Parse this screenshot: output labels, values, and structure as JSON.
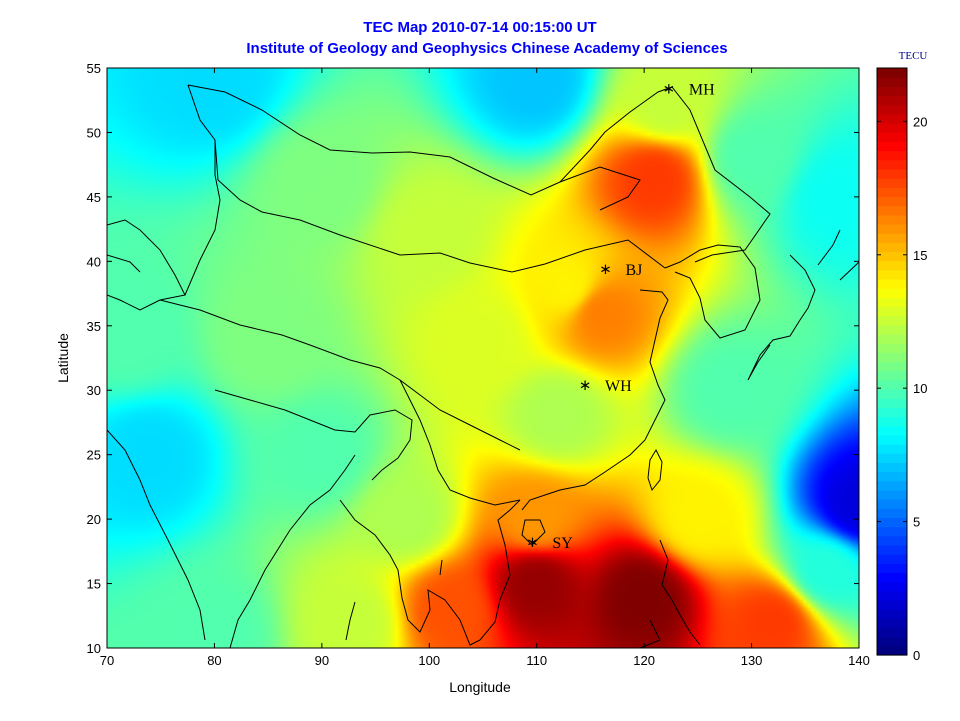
{
  "chart_data": {
    "type": "heatmap",
    "title": "TEC Map 2010-07-14 00:15:00 UT",
    "subtitle": "Institute of Geology and Geophysics Chinese Academy of Sciences",
    "xlabel": "Longitude",
    "ylabel": "Latitude",
    "xlim": [
      70,
      140
    ],
    "ylim": [
      10,
      55
    ],
    "xticks": [
      "70",
      "80",
      "90",
      "100",
      "110",
      "120",
      "130",
      "140"
    ],
    "xtick_values": [
      70,
      80,
      90,
      100,
      110,
      120,
      130,
      140
    ],
    "yticks": [
      "10",
      "15",
      "20",
      "25",
      "30",
      "35",
      "40",
      "45",
      "50",
      "55"
    ],
    "ytick_values": [
      10,
      15,
      20,
      25,
      30,
      35,
      40,
      45,
      50,
      55
    ],
    "colorbar": {
      "label": "TECU",
      "range": [
        0,
        22
      ],
      "ticks": [
        "0",
        "5",
        "10",
        "15",
        "20"
      ],
      "tick_values": [
        0,
        5,
        10,
        15,
        20
      ],
      "colormap": "jet"
    },
    "stations": [
      {
        "name": "MH",
        "lon": 122.3,
        "lat": 53.5
      },
      {
        "name": "BJ",
        "lon": 116.4,
        "lat": 39.5
      },
      {
        "name": "WH",
        "lon": 114.5,
        "lat": 30.5
      },
      {
        "name": "SY",
        "lon": 109.6,
        "lat": 18.3
      }
    ],
    "tec_anchor_points": [
      {
        "lon": 80,
        "lat": 54,
        "tec": 7.5
      },
      {
        "lon": 110,
        "lat": 54,
        "tec": 7.0
      },
      {
        "lon": 122,
        "lat": 52,
        "tec": 12.5
      },
      {
        "lon": 121,
        "lat": 46.5,
        "tec": 18.0
      },
      {
        "lon": 130,
        "lat": 48,
        "tec": 10.0
      },
      {
        "lon": 138,
        "lat": 45,
        "tec": 8.5
      },
      {
        "lon": 90,
        "lat": 46,
        "tec": 11.0
      },
      {
        "lon": 100,
        "lat": 42,
        "tec": 12.5
      },
      {
        "lon": 113,
        "lat": 38,
        "tec": 14.0
      },
      {
        "lon": 116,
        "lat": 36,
        "tec": 16.5
      },
      {
        "lon": 105,
        "lat": 34,
        "tec": 13.0
      },
      {
        "lon": 85,
        "lat": 34,
        "tec": 11.0
      },
      {
        "lon": 72,
        "lat": 34,
        "tec": 10.0
      },
      {
        "lon": 74,
        "lat": 25,
        "tec": 7.5
      },
      {
        "lon": 90,
        "lat": 25,
        "tec": 10.0
      },
      {
        "lon": 112,
        "lat": 28,
        "tec": 12.0
      },
      {
        "lon": 128,
        "lat": 30,
        "tec": 10.0
      },
      {
        "lon": 140,
        "lat": 21,
        "tec": 2.0
      },
      {
        "lon": 137,
        "lat": 16,
        "tec": 9.0
      },
      {
        "lon": 132,
        "lat": 12,
        "tec": 18.0
      },
      {
        "lon": 120,
        "lat": 14,
        "tec": 22.0
      },
      {
        "lon": 110,
        "lat": 15,
        "tec": 21.5
      },
      {
        "lon": 102,
        "lat": 13,
        "tec": 17.5
      },
      {
        "lon": 93,
        "lat": 12,
        "tec": 12.5
      },
      {
        "lon": 80,
        "lat": 11,
        "tec": 10.0
      },
      {
        "lon": 110,
        "lat": 20,
        "tec": 16.0
      },
      {
        "lon": 125,
        "lat": 20,
        "tec": 14.0
      },
      {
        "lon": 98,
        "lat": 20,
        "tec": 12.0
      }
    ]
  }
}
